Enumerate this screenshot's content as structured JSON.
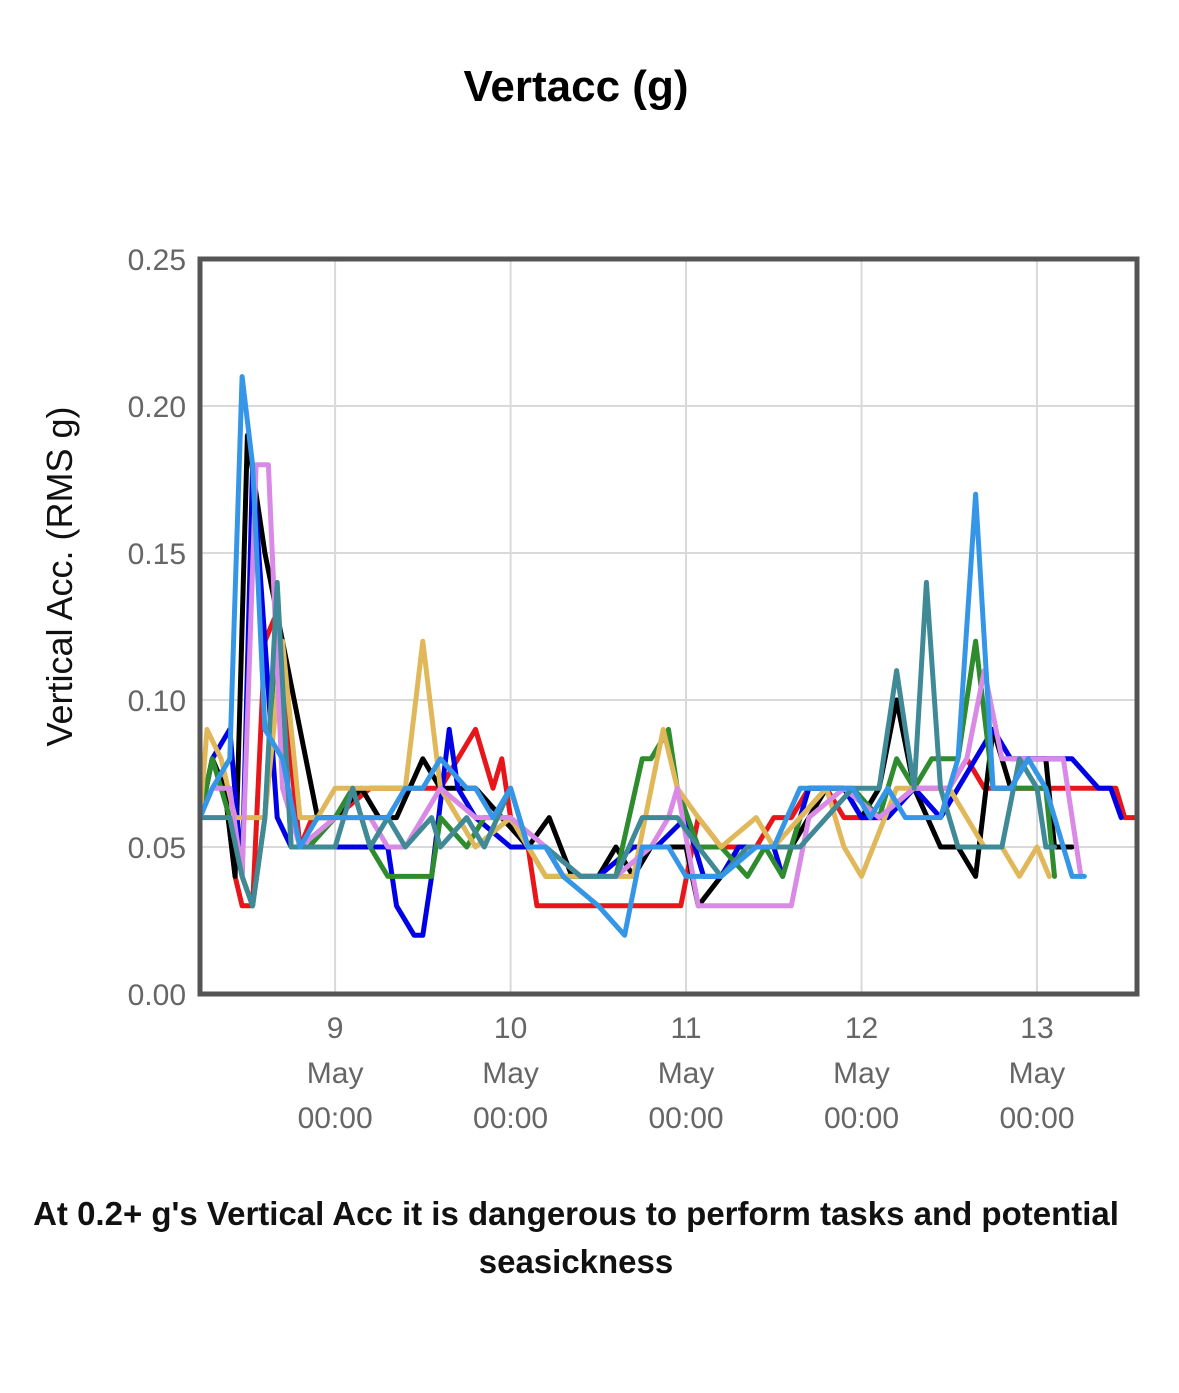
{
  "chart_data": {
    "type": "line",
    "title": "Vertacc (g)",
    "ylabel": "Vertical Acc. (RMS g)",
    "xlabel": "",
    "ylim": [
      0,
      0.25
    ],
    "y_ticks": [
      "0.00",
      "0.05",
      "0.10",
      "0.15",
      "0.20",
      "0.25"
    ],
    "x_ticks": [
      {
        "value": 9,
        "day": "9",
        "month": "May",
        "time": "00:00"
      },
      {
        "value": 10,
        "day": "10",
        "month": "May",
        "time": "00:00"
      },
      {
        "value": 11,
        "day": "11",
        "month": "May",
        "time": "00:00"
      },
      {
        "value": 12,
        "day": "12",
        "month": "May",
        "time": "00:00"
      },
      {
        "value": 13,
        "day": "13",
        "month": "May",
        "time": "00:00"
      }
    ],
    "x_unit": "day of May",
    "xlim": [
      8.23,
      13.57
    ],
    "grid": true,
    "legend": "none",
    "series": [
      {
        "color": "#e8151a",
        "x": [
          8.23,
          8.3,
          8.37,
          8.43,
          8.47,
          8.53,
          8.6,
          8.67,
          8.73,
          8.8,
          8.87,
          8.93,
          9,
          9.2,
          9.4,
          9.6,
          9.7,
          9.8,
          9.9,
          9.95,
          10,
          10.1,
          10.15,
          10.5,
          10.97,
          11.07,
          11.2,
          11.4,
          11.5,
          11.6,
          11.7,
          11.8,
          11.9,
          12.1,
          12.3,
          12.5,
          12.6,
          12.7,
          12.8,
          12.9,
          13.1,
          13.3,
          13.45,
          13.5,
          13.57
        ],
        "y": [
          0.06,
          0.08,
          0.07,
          0.04,
          0.03,
          0.03,
          0.12,
          0.13,
          0.09,
          0.05,
          0.06,
          0.06,
          0.06,
          0.07,
          0.07,
          0.07,
          0.08,
          0.09,
          0.07,
          0.08,
          0.06,
          0.05,
          0.03,
          0.03,
          0.03,
          0.06,
          0.05,
          0.05,
          0.06,
          0.06,
          0.07,
          0.07,
          0.06,
          0.06,
          0.07,
          0.07,
          0.08,
          0.07,
          0.07,
          0.07,
          0.07,
          0.07,
          0.07,
          0.06,
          0.06
        ]
      },
      {
        "color": "#000000",
        "x": [
          8.23,
          8.3,
          8.37,
          8.43,
          8.5,
          8.6,
          8.7,
          8.8,
          8.9,
          9.0,
          9.15,
          9.25,
          9.35,
          9.5,
          9.6,
          9.7,
          9.8,
          9.95,
          10.1,
          10.22,
          10.35,
          10.5,
          10.6,
          10.7,
          10.8,
          11.0,
          11.07,
          11.2,
          11.3,
          11.4,
          11.6,
          11.7,
          11.8,
          11.9,
          12.0,
          12.1,
          12.2,
          12.3,
          12.45,
          12.55,
          12.65,
          12.75,
          12.85,
          12.95,
          13.05,
          13.1,
          13.2
        ],
        "y": [
          0.06,
          0.08,
          0.07,
          0.04,
          0.19,
          0.15,
          0.12,
          0.09,
          0.06,
          0.06,
          0.07,
          0.06,
          0.06,
          0.08,
          0.07,
          0.07,
          0.07,
          0.06,
          0.05,
          0.06,
          0.04,
          0.04,
          0.05,
          0.04,
          0.05,
          0.05,
          0.03,
          0.04,
          0.05,
          0.05,
          0.05,
          0.06,
          0.07,
          0.07,
          0.06,
          0.07,
          0.1,
          0.07,
          0.05,
          0.05,
          0.04,
          0.09,
          0.07,
          0.08,
          0.08,
          0.05,
          0.05
        ]
      },
      {
        "color": "#0000e6",
        "x": [
          8.23,
          8.3,
          8.4,
          8.47,
          8.53,
          8.6,
          8.67,
          8.75,
          8.85,
          9.0,
          9.2,
          9.3,
          9.35,
          9.45,
          9.5,
          9.55,
          9.65,
          9.7,
          9.8,
          10.0,
          10.1,
          10.2,
          10.3,
          10.4,
          10.5,
          10.7,
          10.83,
          11.0,
          11.1,
          11.2,
          11.3,
          11.5,
          11.55,
          11.6,
          11.7,
          11.9,
          12.0,
          12.15,
          12.3,
          12.45,
          12.55,
          12.75,
          12.85,
          13.0,
          13.2,
          13.35,
          13.42,
          13.48
        ],
        "y": [
          0.06,
          0.08,
          0.09,
          0.04,
          0.18,
          0.12,
          0.06,
          0.05,
          0.05,
          0.05,
          0.05,
          0.05,
          0.03,
          0.02,
          0.02,
          0.04,
          0.09,
          0.07,
          0.06,
          0.05,
          0.05,
          0.05,
          0.04,
          0.04,
          0.04,
          0.05,
          0.05,
          0.06,
          0.04,
          0.04,
          0.05,
          0.05,
          0.04,
          0.05,
          0.07,
          0.07,
          0.06,
          0.06,
          0.07,
          0.06,
          0.07,
          0.09,
          0.08,
          0.08,
          0.08,
          0.07,
          0.07,
          0.06
        ]
      },
      {
        "color": "#2e8b2e",
        "x": [
          8.23,
          8.3,
          8.4,
          8.47,
          8.53,
          8.6,
          8.67,
          8.75,
          8.85,
          9.0,
          9.1,
          9.2,
          9.3,
          9.4,
          9.55,
          9.6,
          9.75,
          9.85,
          10.0,
          10.1,
          10.2,
          10.4,
          10.6,
          10.75,
          10.8,
          10.9,
          10.95,
          11.07,
          11.2,
          11.35,
          11.45,
          11.55,
          11.65,
          11.8,
          11.95,
          12.1,
          12.2,
          12.3,
          12.4,
          12.5,
          12.55,
          12.65,
          12.75,
          12.85,
          12.95,
          13.05,
          13.1
        ],
        "y": [
          0.06,
          0.08,
          0.06,
          0.04,
          0.03,
          0.06,
          0.13,
          0.05,
          0.05,
          0.06,
          0.07,
          0.05,
          0.04,
          0.04,
          0.04,
          0.06,
          0.05,
          0.06,
          0.06,
          0.05,
          0.04,
          0.04,
          0.04,
          0.08,
          0.08,
          0.09,
          0.07,
          0.05,
          0.05,
          0.04,
          0.05,
          0.04,
          0.06,
          0.07,
          0.07,
          0.06,
          0.08,
          0.07,
          0.08,
          0.08,
          0.08,
          0.12,
          0.07,
          0.07,
          0.07,
          0.07,
          0.04
        ]
      },
      {
        "color": "#e0b85a",
        "x": [
          8.23,
          8.27,
          8.35,
          8.43,
          8.5,
          8.6,
          8.7,
          8.8,
          8.9,
          9.0,
          9.1,
          9.3,
          9.4,
          9.5,
          9.6,
          9.8,
          10.0,
          10.1,
          10.2,
          10.4,
          10.7,
          10.87,
          10.95,
          11.07,
          11.2,
          11.4,
          11.5,
          11.65,
          11.8,
          11.9,
          12.0,
          12.2,
          12.4,
          12.5,
          12.7,
          12.8,
          12.9,
          13.0,
          13.07
        ],
        "y": [
          0.06,
          0.09,
          0.08,
          0.06,
          0.06,
          0.06,
          0.12,
          0.06,
          0.06,
          0.07,
          0.07,
          0.07,
          0.07,
          0.12,
          0.07,
          0.05,
          0.06,
          0.05,
          0.04,
          0.04,
          0.04,
          0.09,
          0.07,
          0.06,
          0.05,
          0.06,
          0.05,
          0.06,
          0.07,
          0.05,
          0.04,
          0.07,
          0.07,
          0.07,
          0.05,
          0.05,
          0.04,
          0.05,
          0.04
        ]
      },
      {
        "color": "#d88ae6",
        "x": [
          8.23,
          8.3,
          8.4,
          8.47,
          8.55,
          8.62,
          8.7,
          8.8,
          9.0,
          9.2,
          9.3,
          9.4,
          9.6,
          9.8,
          10.0,
          10.2,
          10.4,
          10.6,
          10.8,
          10.9,
          10.95,
          11.07,
          11.2,
          11.4,
          11.5,
          11.6,
          11.7,
          11.9,
          12.1,
          12.3,
          12.5,
          12.6,
          12.7,
          12.8,
          12.9,
          13.05,
          13.15,
          13.2,
          13.25
        ],
        "y": [
          0.06,
          0.07,
          0.07,
          0.04,
          0.18,
          0.18,
          0.07,
          0.05,
          0.06,
          0.06,
          0.05,
          0.05,
          0.07,
          0.06,
          0.06,
          0.05,
          0.04,
          0.04,
          0.05,
          0.06,
          0.07,
          0.03,
          0.03,
          0.03,
          0.03,
          0.03,
          0.06,
          0.07,
          0.06,
          0.07,
          0.07,
          0.08,
          0.11,
          0.08,
          0.08,
          0.08,
          0.08,
          0.06,
          0.04
        ]
      },
      {
        "color": "#3f8a96",
        "x": [
          8.23,
          8.3,
          8.4,
          8.47,
          8.53,
          8.6,
          8.67,
          8.75,
          8.85,
          9.0,
          9.1,
          9.2,
          9.3,
          9.4,
          9.55,
          9.6,
          9.75,
          9.85,
          10.0,
          10.1,
          10.2,
          10.4,
          10.6,
          10.75,
          10.95,
          11.07,
          11.2,
          11.35,
          11.45,
          11.55,
          11.65,
          11.8,
          11.95,
          12.1,
          12.2,
          12.3,
          12.37,
          12.45,
          12.55,
          12.7,
          12.8,
          12.9,
          13.0,
          13.05,
          13.1
        ],
        "y": [
          0.06,
          0.06,
          0.06,
          0.04,
          0.03,
          0.06,
          0.14,
          0.05,
          0.05,
          0.05,
          0.07,
          0.05,
          0.06,
          0.05,
          0.06,
          0.05,
          0.06,
          0.05,
          0.07,
          0.05,
          0.05,
          0.04,
          0.04,
          0.06,
          0.06,
          0.05,
          0.04,
          0.05,
          0.05,
          0.05,
          0.05,
          0.06,
          0.07,
          0.07,
          0.11,
          0.07,
          0.14,
          0.07,
          0.05,
          0.05,
          0.05,
          0.08,
          0.07,
          0.05,
          0.05
        ]
      },
      {
        "color": "#3596e8",
        "x": [
          8.23,
          8.3,
          8.4,
          8.47,
          8.53,
          8.6,
          8.7,
          8.8,
          8.9,
          9.0,
          9.2,
          9.3,
          9.4,
          9.5,
          9.6,
          9.75,
          9.8,
          9.9,
          10.0,
          10.1,
          10.2,
          10.3,
          10.5,
          10.65,
          10.75,
          10.9,
          11.0,
          11.07,
          11.2,
          11.4,
          11.5,
          11.65,
          11.8,
          11.95,
          12.05,
          12.15,
          12.25,
          12.35,
          12.45,
          12.55,
          12.65,
          12.75,
          12.85,
          12.95,
          13.05,
          13.15,
          13.2,
          13.27
        ],
        "y": [
          0.06,
          0.07,
          0.08,
          0.21,
          0.18,
          0.09,
          0.08,
          0.05,
          0.06,
          0.06,
          0.06,
          0.06,
          0.07,
          0.07,
          0.08,
          0.07,
          0.07,
          0.06,
          0.07,
          0.05,
          0.05,
          0.04,
          0.03,
          0.02,
          0.05,
          0.05,
          0.04,
          0.04,
          0.04,
          0.05,
          0.05,
          0.07,
          0.07,
          0.07,
          0.06,
          0.07,
          0.06,
          0.06,
          0.06,
          0.08,
          0.17,
          0.07,
          0.07,
          0.08,
          0.07,
          0.05,
          0.04,
          0.04
        ]
      }
    ]
  },
  "caption": "At 0.2+ g's Vertical Acc it is dangerous to perform tasks and potential seasickness"
}
